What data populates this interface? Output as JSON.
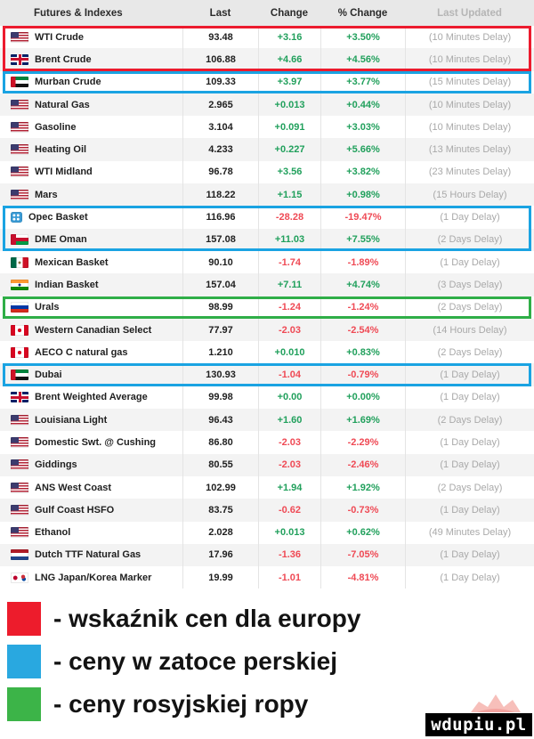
{
  "table": {
    "headers": [
      "Futures & Indexes",
      "Last",
      "Change",
      "% Change",
      "Last Updated"
    ],
    "rows": [
      {
        "flag": "us",
        "name": "WTI Crude",
        "last": "93.48",
        "change": "+3.16",
        "pct": "+3.50%",
        "delay": "(10 Minutes Delay)",
        "hl": "red-start"
      },
      {
        "flag": "uk",
        "name": "Brent Crude",
        "last": "106.88",
        "change": "+4.66",
        "pct": "+4.56%",
        "delay": "(10 Minutes Delay)",
        "hl": "red-end"
      },
      {
        "flag": "ae",
        "name": "Murban Crude",
        "last": "109.33",
        "change": "+3.97",
        "pct": "+3.77%",
        "delay": "(15 Minutes Delay)",
        "hl": "blue-full"
      },
      {
        "flag": "us",
        "name": "Natural Gas",
        "last": "2.965",
        "change": "+0.013",
        "pct": "+0.44%",
        "delay": "(10 Minutes Delay)",
        "hl": null
      },
      {
        "flag": "us",
        "name": "Gasoline",
        "last": "3.104",
        "change": "+0.091",
        "pct": "+3.03%",
        "delay": "(10 Minutes Delay)",
        "hl": null
      },
      {
        "flag": "us",
        "name": "Heating Oil",
        "last": "4.233",
        "change": "+0.227",
        "pct": "+5.66%",
        "delay": "(13 Minutes Delay)",
        "hl": null
      },
      {
        "flag": "us",
        "name": "WTI Midland",
        "last": "96.78",
        "change": "+3.56",
        "pct": "+3.82%",
        "delay": "(23 Minutes Delay)",
        "hl": null
      },
      {
        "flag": "us",
        "name": "Mars",
        "last": "118.22",
        "change": "+1.15",
        "pct": "+0.98%",
        "delay": "(15 Hours Delay)",
        "hl": null
      },
      {
        "flag": "opec",
        "name": "Opec Basket",
        "last": "116.96",
        "change": "-28.28",
        "pct": "-19.47%",
        "delay": "(1 Day Delay)",
        "hl": "blue-start"
      },
      {
        "flag": "om",
        "name": "DME Oman",
        "last": "157.08",
        "change": "+11.03",
        "pct": "+7.55%",
        "delay": "(2 Days Delay)",
        "hl": "blue-end"
      },
      {
        "flag": "mx",
        "name": "Mexican Basket",
        "last": "90.10",
        "change": "-1.74",
        "pct": "-1.89%",
        "delay": "(1 Day Delay)",
        "hl": null
      },
      {
        "flag": "in",
        "name": "Indian Basket",
        "last": "157.04",
        "change": "+7.11",
        "pct": "+4.74%",
        "delay": "(3 Days Delay)",
        "hl": null
      },
      {
        "flag": "ru",
        "name": "Urals",
        "last": "98.99",
        "change": "-1.24",
        "pct": "-1.24%",
        "delay": "(2 Days Delay)",
        "hl": "green-full"
      },
      {
        "flag": "ca",
        "name": "Western Canadian Select",
        "last": "77.97",
        "change": "-2.03",
        "pct": "-2.54%",
        "delay": "(14 Hours Delay)",
        "hl": null
      },
      {
        "flag": "ca",
        "name": "AECO C natural gas",
        "last": "1.210",
        "change": "+0.010",
        "pct": "+0.83%",
        "delay": "(2 Days Delay)",
        "hl": null
      },
      {
        "flag": "ae",
        "name": "Dubai",
        "last": "130.93",
        "change": "-1.04",
        "pct": "-0.79%",
        "delay": "(1 Day Delay)",
        "hl": "blue-full"
      },
      {
        "flag": "uk",
        "name": "Brent Weighted Average",
        "last": "99.98",
        "change": "+0.00",
        "pct": "+0.00%",
        "delay": "(1 Day Delay)",
        "hl": null
      },
      {
        "flag": "us",
        "name": "Louisiana Light",
        "last": "96.43",
        "change": "+1.60",
        "pct": "+1.69%",
        "delay": "(2 Days Delay)",
        "hl": null
      },
      {
        "flag": "us",
        "name": "Domestic Swt. @ Cushing",
        "last": "86.80",
        "change": "-2.03",
        "pct": "-2.29%",
        "delay": "(1 Day Delay)",
        "hl": null
      },
      {
        "flag": "us",
        "name": "Giddings",
        "last": "80.55",
        "change": "-2.03",
        "pct": "-2.46%",
        "delay": "(1 Day Delay)",
        "hl": null
      },
      {
        "flag": "us",
        "name": "ANS West Coast",
        "last": "102.99",
        "change": "+1.94",
        "pct": "+1.92%",
        "delay": "(2 Days Delay)",
        "hl": null
      },
      {
        "flag": "us",
        "name": "Gulf Coast HSFO",
        "last": "83.75",
        "change": "-0.62",
        "pct": "-0.73%",
        "delay": "(1 Day Delay)",
        "hl": null
      },
      {
        "flag": "us",
        "name": "Ethanol",
        "last": "2.028",
        "change": "+0.013",
        "pct": "+0.62%",
        "delay": "(49 Minutes Delay)",
        "hl": null
      },
      {
        "flag": "nl",
        "name": "Dutch TTF Natural Gas",
        "last": "17.96",
        "change": "-1.36",
        "pct": "-7.05%",
        "delay": "(1 Day Delay)",
        "hl": null
      },
      {
        "flag": "jpkr",
        "name": "LNG Japan/Korea Marker",
        "last": "19.99",
        "change": "-1.01",
        "pct": "-4.81%",
        "delay": "(1 Day Delay)",
        "hl": null
      }
    ]
  },
  "highlight_colors": {
    "red": "#ec1b2e",
    "blue": "#1aa3e2",
    "green": "#2fae47"
  },
  "value_colors": {
    "positive": "#21a05c",
    "negative": "#ef4a55"
  },
  "legend": {
    "items": [
      {
        "color": "#ed1c2c",
        "label": "- wskaźnik cen dla europy"
      },
      {
        "color": "#29a8e0",
        "label": "- ceny w zatoce perskiej"
      },
      {
        "color": "#3cb448",
        "label": "- ceny rosyjskiej ropy"
      }
    ]
  },
  "watermark": {
    "text": "wdupiu.pl"
  }
}
